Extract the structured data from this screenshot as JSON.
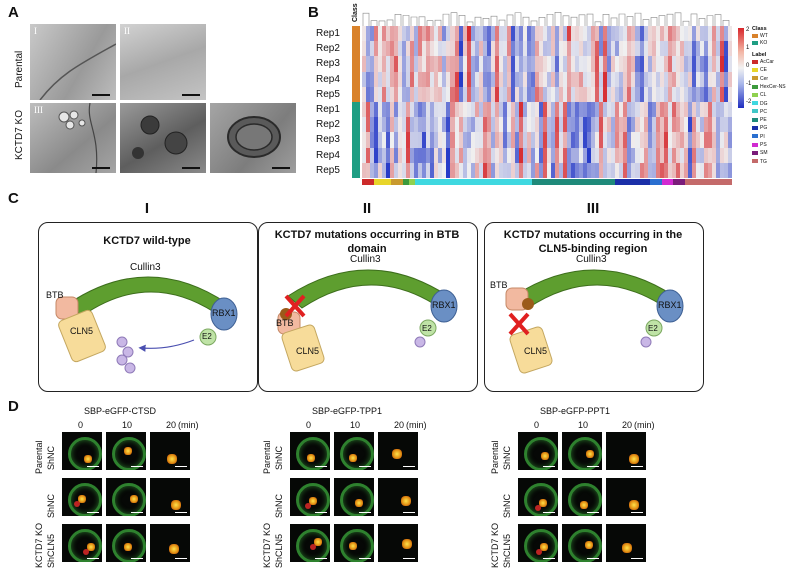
{
  "panels": {
    "a": "A",
    "b": "B",
    "c": "C",
    "d": "D"
  },
  "panelA": {
    "row_labels": [
      "Parental",
      "KCTD7 KO"
    ],
    "image_numerals": [
      "I",
      "II",
      "III"
    ]
  },
  "panelB": {
    "class_header": "Class",
    "rows": [
      "Rep1",
      "Rep2",
      "Rep3",
      "Rep4",
      "Rep5",
      "Rep1",
      "Rep2",
      "Rep3",
      "Rep4",
      "Rep5"
    ],
    "class_colors": {
      "WT": "#d9822b",
      "KO": "#1f9e83"
    },
    "scale_ticks": [
      "2",
      "1",
      "0",
      "-1",
      "-2"
    ],
    "legend_class_title": "Class",
    "legend_class": [
      {
        "name": "WT",
        "color": "#d9822b"
      },
      {
        "name": "KO",
        "color": "#1f9e83"
      }
    ],
    "legend_label_title": "Label",
    "legend_labels": [
      {
        "name": "AcCar",
        "color": "#cc2a2a"
      },
      {
        "name": "CE",
        "color": "#e8d52a"
      },
      {
        "name": "Cer",
        "color": "#c99a2e"
      },
      {
        "name": "HexCer-NS",
        "color": "#3c9a3c"
      },
      {
        "name": "CL",
        "color": "#8fd14f"
      },
      {
        "name": "DG",
        "color": "#3fd8e0"
      },
      {
        "name": "PC",
        "color": "#41c7c7"
      },
      {
        "name": "PE",
        "color": "#1f8a7a"
      },
      {
        "name": "PG",
        "color": "#1b2fa8"
      },
      {
        "name": "PI",
        "color": "#2a6fd0"
      },
      {
        "name": "PS",
        "color": "#d12ad1"
      },
      {
        "name": "SM",
        "color": "#7a1c7a"
      },
      {
        "name": "TG",
        "color": "#c46a6a"
      }
    ],
    "label_bar": [
      {
        "color": "#cc2a2a",
        "w": 2
      },
      {
        "color": "#e8d52a",
        "w": 3
      },
      {
        "color": "#c99a2e",
        "w": 2
      },
      {
        "color": "#3c9a3c",
        "w": 1
      },
      {
        "color": "#8fd14f",
        "w": 1
      },
      {
        "color": "#3fd8e0",
        "w": 20
      },
      {
        "color": "#1f8a7a",
        "w": 14
      },
      {
        "color": "#1b2fa8",
        "w": 6
      },
      {
        "color": "#2a6fd0",
        "w": 2
      },
      {
        "color": "#d12ad1",
        "w": 2
      },
      {
        "color": "#7a1c7a",
        "w": 2
      },
      {
        "color": "#c46a6a",
        "w": 8
      }
    ]
  },
  "panelC": {
    "boxes": [
      {
        "roman": "I",
        "title": "KCTD7 wild-type"
      },
      {
        "roman": "II",
        "title": "KCTD7 mutations occurring in BTB domain"
      },
      {
        "roman": "III",
        "title": "KCTD7 mutations occurring in the CLN5-binding region"
      }
    ],
    "labels": {
      "cullin": "Cullin3",
      "rbx": "RBX1",
      "btb": "BTB",
      "cln5": "CLN5",
      "e2": "E2",
      "ub": "Ub"
    }
  },
  "panelD": {
    "groups": [
      {
        "title": "SBP-eGFP-CTSD"
      },
      {
        "title": "SBP-eGFP-TPP1"
      },
      {
        "title": "SBP-eGFP-PPT1"
      }
    ],
    "times": [
      "0",
      "10",
      "20"
    ],
    "time_unit": "(min)",
    "parental": "Parental",
    "shnc": "ShNC",
    "kctd7ko": "KCTD7 KO",
    "shcln5": "ShCLN5"
  }
}
